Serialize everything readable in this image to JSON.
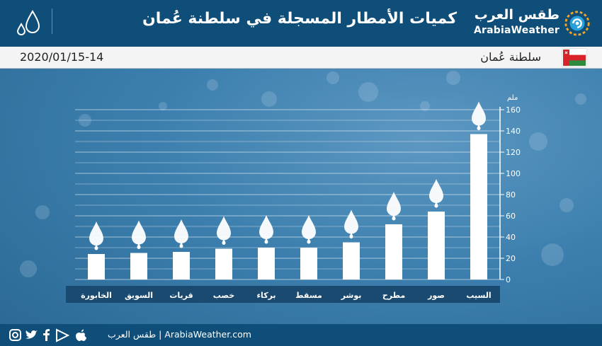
{
  "header": {
    "title": "كميات الأمطار المسجلة في سلطنة عُمان",
    "brand_ar": "طقس العرب",
    "brand_en": "ArabiaWeather"
  },
  "infobar": {
    "date": "2020/01/15-14",
    "country": "سلطنة عُمان"
  },
  "footer": {
    "site": "طقس العرب | ArabiaWeather.com",
    "social_icons": [
      "instagram-icon",
      "twitter-icon",
      "facebook-icon",
      "google-play-icon",
      "apple-icon"
    ]
  },
  "colors": {
    "header_bg": "#0f4e78",
    "bar": "#ffffff",
    "category_band": "#1a4a70"
  },
  "chart_data": {
    "type": "bar",
    "unit_label": "ملم",
    "categories": [
      "السيب",
      "صور",
      "مطرح",
      "بوشر",
      "مسقط",
      "بركاء",
      "خصب",
      "قريات",
      "السويق",
      "الخابورة"
    ],
    "values": [
      137,
      64,
      52,
      35,
      30,
      30,
      29,
      26,
      25,
      24
    ],
    "ylim": [
      0,
      160
    ],
    "yticks": [
      "0",
      "20",
      "40",
      "60",
      "80",
      "100",
      "120",
      "140",
      "160"
    ],
    "y_tick_values": [
      0,
      20,
      40,
      60,
      80,
      100,
      120,
      140,
      160
    ],
    "grid": true,
    "axis_side": "right"
  }
}
